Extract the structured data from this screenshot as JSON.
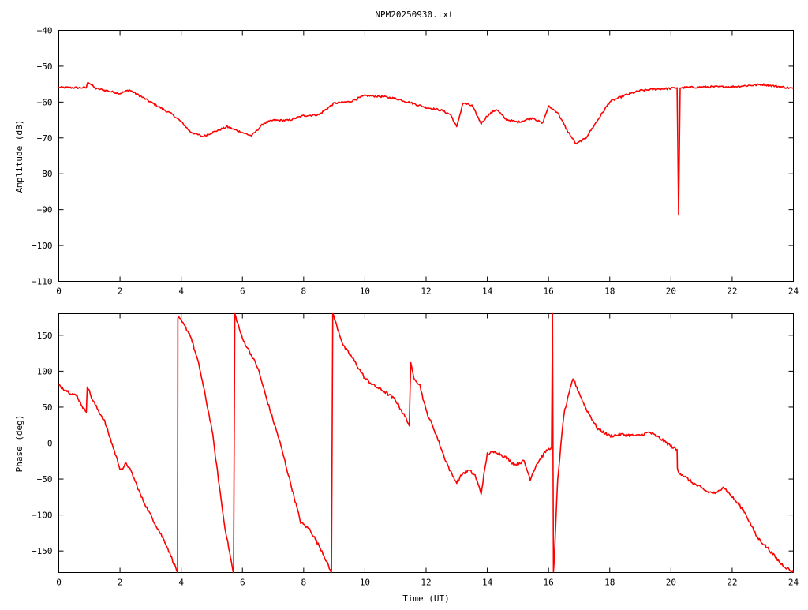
{
  "title": "NPM20250930.txt",
  "colors": {
    "trace": "#ff0000",
    "axis": "#000000",
    "background": "#ffffff"
  },
  "chart_data": [
    {
      "type": "line",
      "panel": "amplitude",
      "title": "NPM20250930.txt",
      "xlabel": "",
      "ylabel": "Amplitude (dB)",
      "xlim": [
        0,
        24
      ],
      "ylim": [
        -110,
        -40
      ],
      "grid": false,
      "xticks": [
        "0",
        "2",
        "4",
        "6",
        "8",
        "10",
        "12",
        "14",
        "16",
        "18",
        "20",
        "22",
        "24"
      ],
      "yticks": [
        "-40",
        "-50",
        "-60",
        "-70",
        "-80",
        "-90",
        "-100",
        "-110"
      ],
      "series": [
        {
          "x": [
            0,
            0.5,
            0.9,
            0.95,
            1.2,
            1.6,
            2.0,
            2.3,
            2.7,
            3.2,
            3.7,
            4.0,
            4.3,
            4.7,
            5.1,
            5.5,
            5.9,
            6.3,
            6.7,
            7.0,
            7.5,
            8.0,
            8.5,
            9.0,
            9.5,
            10.0,
            10.5,
            11.0,
            11.5,
            12.0,
            12.5,
            12.8,
            13.0,
            13.2,
            13.5,
            13.8,
            14.0,
            14.3,
            14.6,
            15.0,
            15.5,
            15.8,
            16.0,
            16.3,
            16.6,
            16.9,
            17.2,
            17.6,
            18.0,
            18.5,
            19.0,
            19.5,
            20.0,
            20.2,
            20.25,
            20.3,
            21.0,
            22.0,
            23.0,
            24.0
          ],
          "y": [
            -55.9,
            -56.0,
            -56.0,
            -54.3,
            -56.2,
            -56.9,
            -57.6,
            -56.6,
            -58.5,
            -61.0,
            -63.4,
            -65.5,
            -68.3,
            -69.6,
            -68.2,
            -66.9,
            -68.2,
            -69.4,
            -65.9,
            -65.1,
            -65.1,
            -63.8,
            -63.5,
            -60.3,
            -59.9,
            -58.2,
            -58.4,
            -59.0,
            -60.2,
            -61.5,
            -62.3,
            -63.5,
            -67.0,
            -60.3,
            -61.0,
            -66.0,
            -63.8,
            -62.0,
            -64.8,
            -65.6,
            -64.4,
            -66.0,
            -61.2,
            -62.9,
            -67.8,
            -71.7,
            -70.2,
            -65.1,
            -59.9,
            -58.1,
            -56.8,
            -56.4,
            -56.2,
            -56.0,
            -91.5,
            -56.0,
            -55.8,
            -55.7,
            -55.1,
            -56.2
          ]
        }
      ]
    },
    {
      "type": "line",
      "panel": "phase",
      "title": "",
      "xlabel": "Time (UT)",
      "ylabel": "Phase (deg)",
      "xlim": [
        0,
        24
      ],
      "ylim": [
        -180,
        180
      ],
      "grid": false,
      "xticks": [
        "0",
        "2",
        "4",
        "6",
        "8",
        "10",
        "12",
        "14",
        "16",
        "18",
        "20",
        "22",
        "24"
      ],
      "yticks": [
        "150",
        "100",
        "50",
        "0",
        "-50",
        "-100",
        "-150"
      ],
      "series": [
        {
          "x": [
            0,
            0.3,
            0.6,
            0.85,
            0.9,
            0.93,
            1.1,
            1.5,
            2.0,
            2.1,
            2.2,
            2.4,
            2.7,
            3.0,
            3.5,
            3.88,
            3.89,
            4.0,
            4.3,
            4.6,
            5.0,
            5.4,
            5.7,
            5.71,
            5.75,
            6.0,
            6.2,
            6.5,
            6.8,
            7.2,
            7.6,
            7.9,
            8.2,
            8.6,
            8.9,
            8.91,
            8.95,
            9.3,
            9.6,
            10.0,
            10.3,
            10.7,
            11.0,
            11.4,
            11.45,
            11.5,
            11.6,
            11.8,
            12.0,
            12.3,
            12.6,
            12.8,
            13.0,
            13.2,
            13.4,
            13.6,
            13.8,
            13.85,
            14.0,
            14.3,
            14.6,
            14.9,
            15.2,
            15.4,
            15.6,
            15.9,
            16.1,
            16.13,
            16.16,
            16.18,
            16.3,
            16.5,
            16.8,
            17.2,
            17.6,
            18.0,
            18.4,
            18.9,
            19.3,
            19.7,
            20.2,
            20.21,
            20.25,
            20.7,
            21.2,
            21.5,
            21.7,
            22.0,
            22.4,
            22.8,
            23.2,
            23.6,
            24.0
          ],
          "y": [
            80,
            72,
            65,
            45,
            45,
            80,
            60,
            30,
            -35,
            -37,
            -27,
            -43,
            -75,
            -100,
            -140,
            -180,
            175,
            170,
            150,
            105,
            20,
            -110,
            -180,
            -180,
            180,
            145,
            130,
            105,
            60,
            5,
            -60,
            -110,
            -120,
            -150,
            -180,
            -180,
            180,
            135,
            118,
            90,
            80,
            70,
            60,
            30,
            25,
            110,
            92,
            80,
            45,
            15,
            -20,
            -40,
            -55,
            -42,
            -38,
            -45,
            -70,
            -55,
            -15,
            -12,
            -20,
            -30,
            -25,
            -50,
            -30,
            -12,
            -5,
            180,
            -180,
            -170,
            -50,
            40,
            90,
            50,
            20,
            10,
            12,
            10,
            15,
            5,
            -10,
            -35,
            -40,
            -55,
            -68,
            -70,
            -60,
            -75,
            -95,
            -130,
            -148,
            -168,
            -180
          ]
        }
      ]
    }
  ]
}
